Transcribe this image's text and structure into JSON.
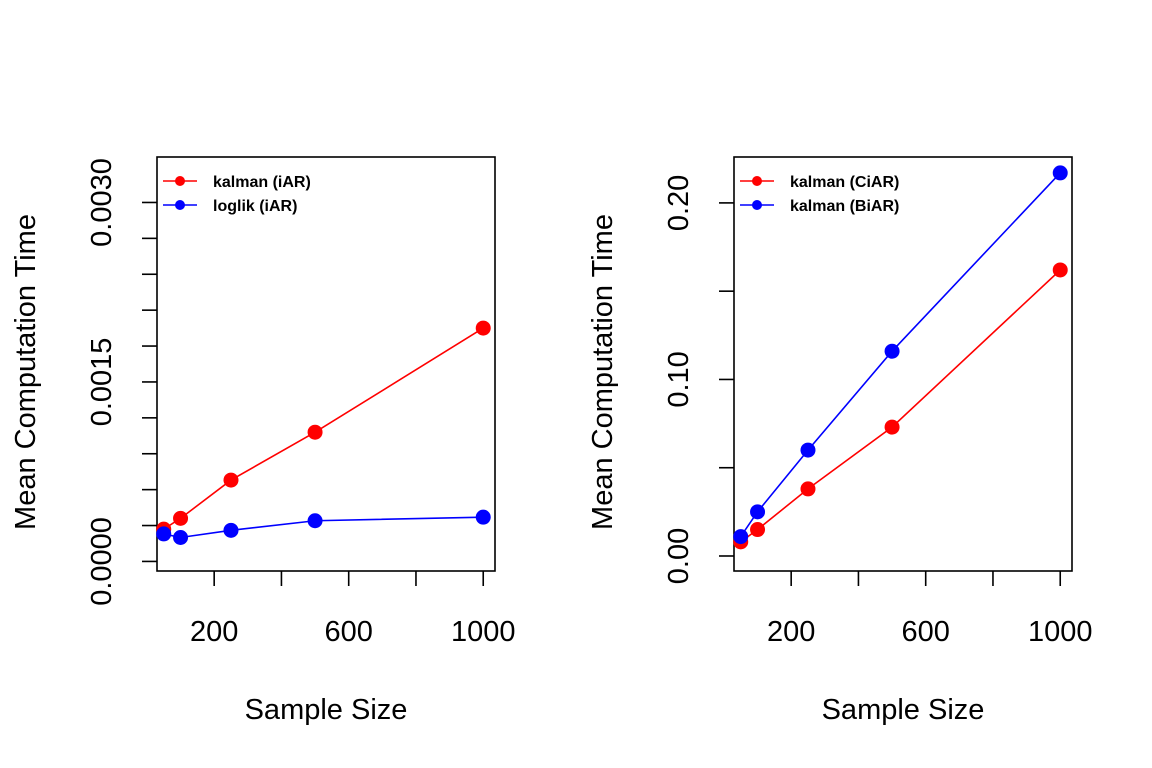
{
  "chart_data": [
    {
      "type": "line",
      "xlabel": "Sample Size",
      "ylabel": "Mean Computation Time",
      "x": [
        50,
        100,
        250,
        500,
        1000
      ],
      "xlim": [
        30,
        1035
      ],
      "ylim": [
        -8e-05,
        0.00338
      ],
      "xticks": [
        200,
        400,
        600,
        800,
        1000
      ],
      "xtick_labels": [
        "200",
        "",
        "600",
        "",
        "1000"
      ],
      "yticks": [
        0,
        0.0003,
        0.0006,
        0.0009,
        0.0012,
        0.0015,
        0.0018,
        0.0021,
        0.0024,
        0.0027,
        0.003
      ],
      "ytick_labels": [
        "0.0000",
        "",
        "",
        "",
        "",
        "0.0015",
        "",
        "",
        "",
        "",
        "0.0030"
      ],
      "series": [
        {
          "name": "kalman (iAR)",
          "color": "#ff0000",
          "values": [
            0.00027,
            0.00036,
            0.00068,
            0.00108,
            0.00195
          ]
        },
        {
          "name": "loglik (iAR)",
          "color": "#0000ff",
          "values": [
            0.00023,
            0.0002,
            0.00026,
            0.00034,
            0.00037
          ]
        }
      ],
      "legend_position": "top-left",
      "grid": false
    },
    {
      "type": "line",
      "xlabel": "Sample Size",
      "ylabel": "Mean Computation Time",
      "x": [
        50,
        100,
        250,
        500,
        1000
      ],
      "xlim": [
        30,
        1035
      ],
      "ylim": [
        -0.0085,
        0.226
      ],
      "xticks": [
        200,
        400,
        600,
        800,
        1000
      ],
      "xtick_labels": [
        "200",
        "",
        "600",
        "",
        "1000"
      ],
      "yticks": [
        0,
        0.05,
        0.1,
        0.15,
        0.2
      ],
      "ytick_labels": [
        "0.00",
        "",
        "0.10",
        "",
        "0.20"
      ],
      "series": [
        {
          "name": "kalman (CiAR)",
          "color": "#ff0000",
          "values": [
            0.008,
            0.015,
            0.038,
            0.073,
            0.162
          ]
        },
        {
          "name": "kalman (BiAR)",
          "color": "#0000ff",
          "values": [
            0.011,
            0.025,
            0.06,
            0.116,
            0.217
          ]
        }
      ],
      "legend_position": "top-left",
      "grid": false
    }
  ]
}
